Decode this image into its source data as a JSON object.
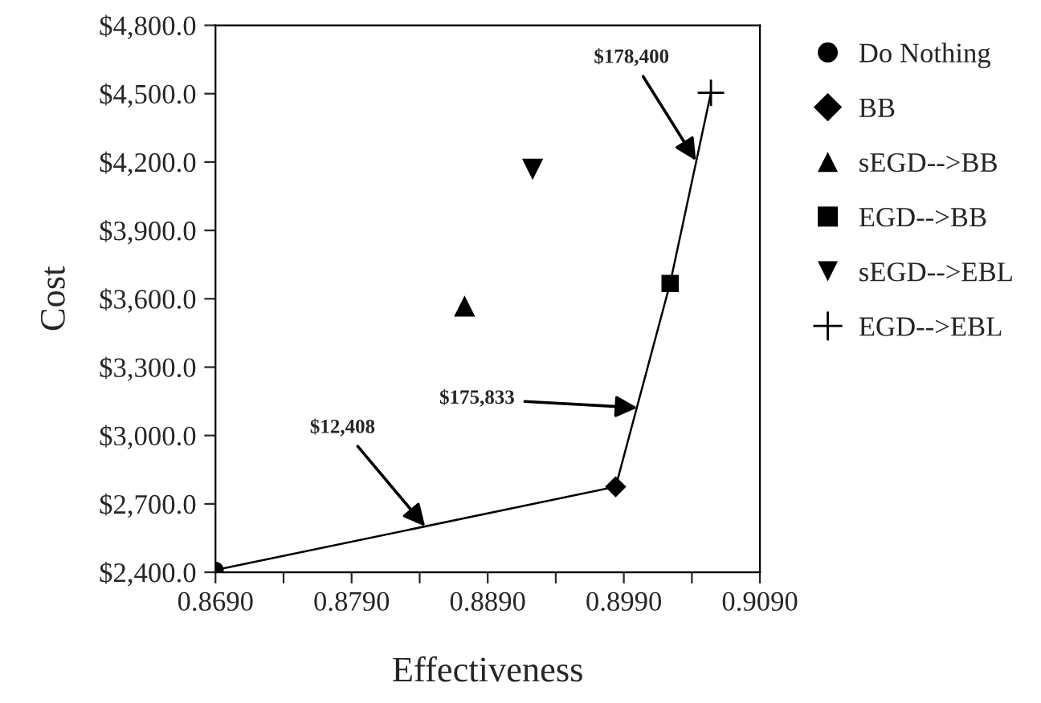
{
  "chart_data": {
    "type": "scatter",
    "xlabel": "Effectiveness",
    "ylabel": "Cost",
    "xlim": [
      0.869,
      0.909
    ],
    "ylim": [
      2400,
      4800
    ],
    "xticks": [
      {
        "value": 0.869,
        "label": "0.8690"
      },
      {
        "value": 0.874,
        "label": null
      },
      {
        "value": 0.879,
        "label": "0.8790"
      },
      {
        "value": 0.884,
        "label": null
      },
      {
        "value": 0.889,
        "label": "0.8890"
      },
      {
        "value": 0.894,
        "label": null
      },
      {
        "value": 0.899,
        "label": "0.8990"
      },
      {
        "value": 0.904,
        "label": null
      },
      {
        "value": 0.909,
        "label": "0.9090"
      }
    ],
    "yticks": [
      {
        "value": 2400,
        "label": "$2,400.0"
      },
      {
        "value": 2700,
        "label": "$2,700.0"
      },
      {
        "value": 3000,
        "label": "$3,000.0"
      },
      {
        "value": 3300,
        "label": "$3,300.0"
      },
      {
        "value": 3600,
        "label": "$3,600.0"
      },
      {
        "value": 3900,
        "label": "$3,900.0"
      },
      {
        "value": 4200,
        "label": "$4,200.0"
      },
      {
        "value": 4500,
        "label": "$4,500.0"
      },
      {
        "value": 4800,
        "label": "$4,800.0"
      }
    ],
    "grid": false,
    "legend": "right",
    "series": [
      {
        "type": "line",
        "color": "#000000",
        "marker": "none",
        "x": [
          0.869,
          0.8984,
          0.9024,
          0.9054
        ],
        "values": [
          2410,
          2775,
          3667,
          4504
        ]
      },
      {
        "name": "Do Nothing",
        "color": "#000000",
        "marker": "circle",
        "x": [
          0.869
        ],
        "values": [
          2410
        ]
      },
      {
        "name": "BB",
        "color": "#000000",
        "marker": "diamond",
        "x": [
          0.8984
        ],
        "values": [
          2775
        ]
      },
      {
        "name": "sEGD-->BB",
        "color": "#000000",
        "marker": "triangle",
        "x": [
          0.8873
        ],
        "values": [
          3568
        ]
      },
      {
        "name": "EGD-->BB",
        "color": "#000000",
        "marker": "square",
        "x": [
          0.9024
        ],
        "values": [
          3667
        ]
      },
      {
        "name": "sEGD-->EBL",
        "color": "#000000",
        "marker": "triangle_down",
        "x": [
          0.8923
        ],
        "values": [
          4168
        ]
      },
      {
        "name": "EGD-->EBL",
        "color": "#000000",
        "marker": "cross",
        "x": [
          0.9054
        ],
        "values": [
          4504
        ]
      }
    ],
    "annotations": [
      {
        "text": "$12,408",
        "x": 0.8844,
        "y": 2601
      },
      {
        "text": "$175,833",
        "x": 0.9,
        "y": 3122
      },
      {
        "text": "$178,400",
        "x": 0.9043,
        "y": 4206
      }
    ]
  }
}
